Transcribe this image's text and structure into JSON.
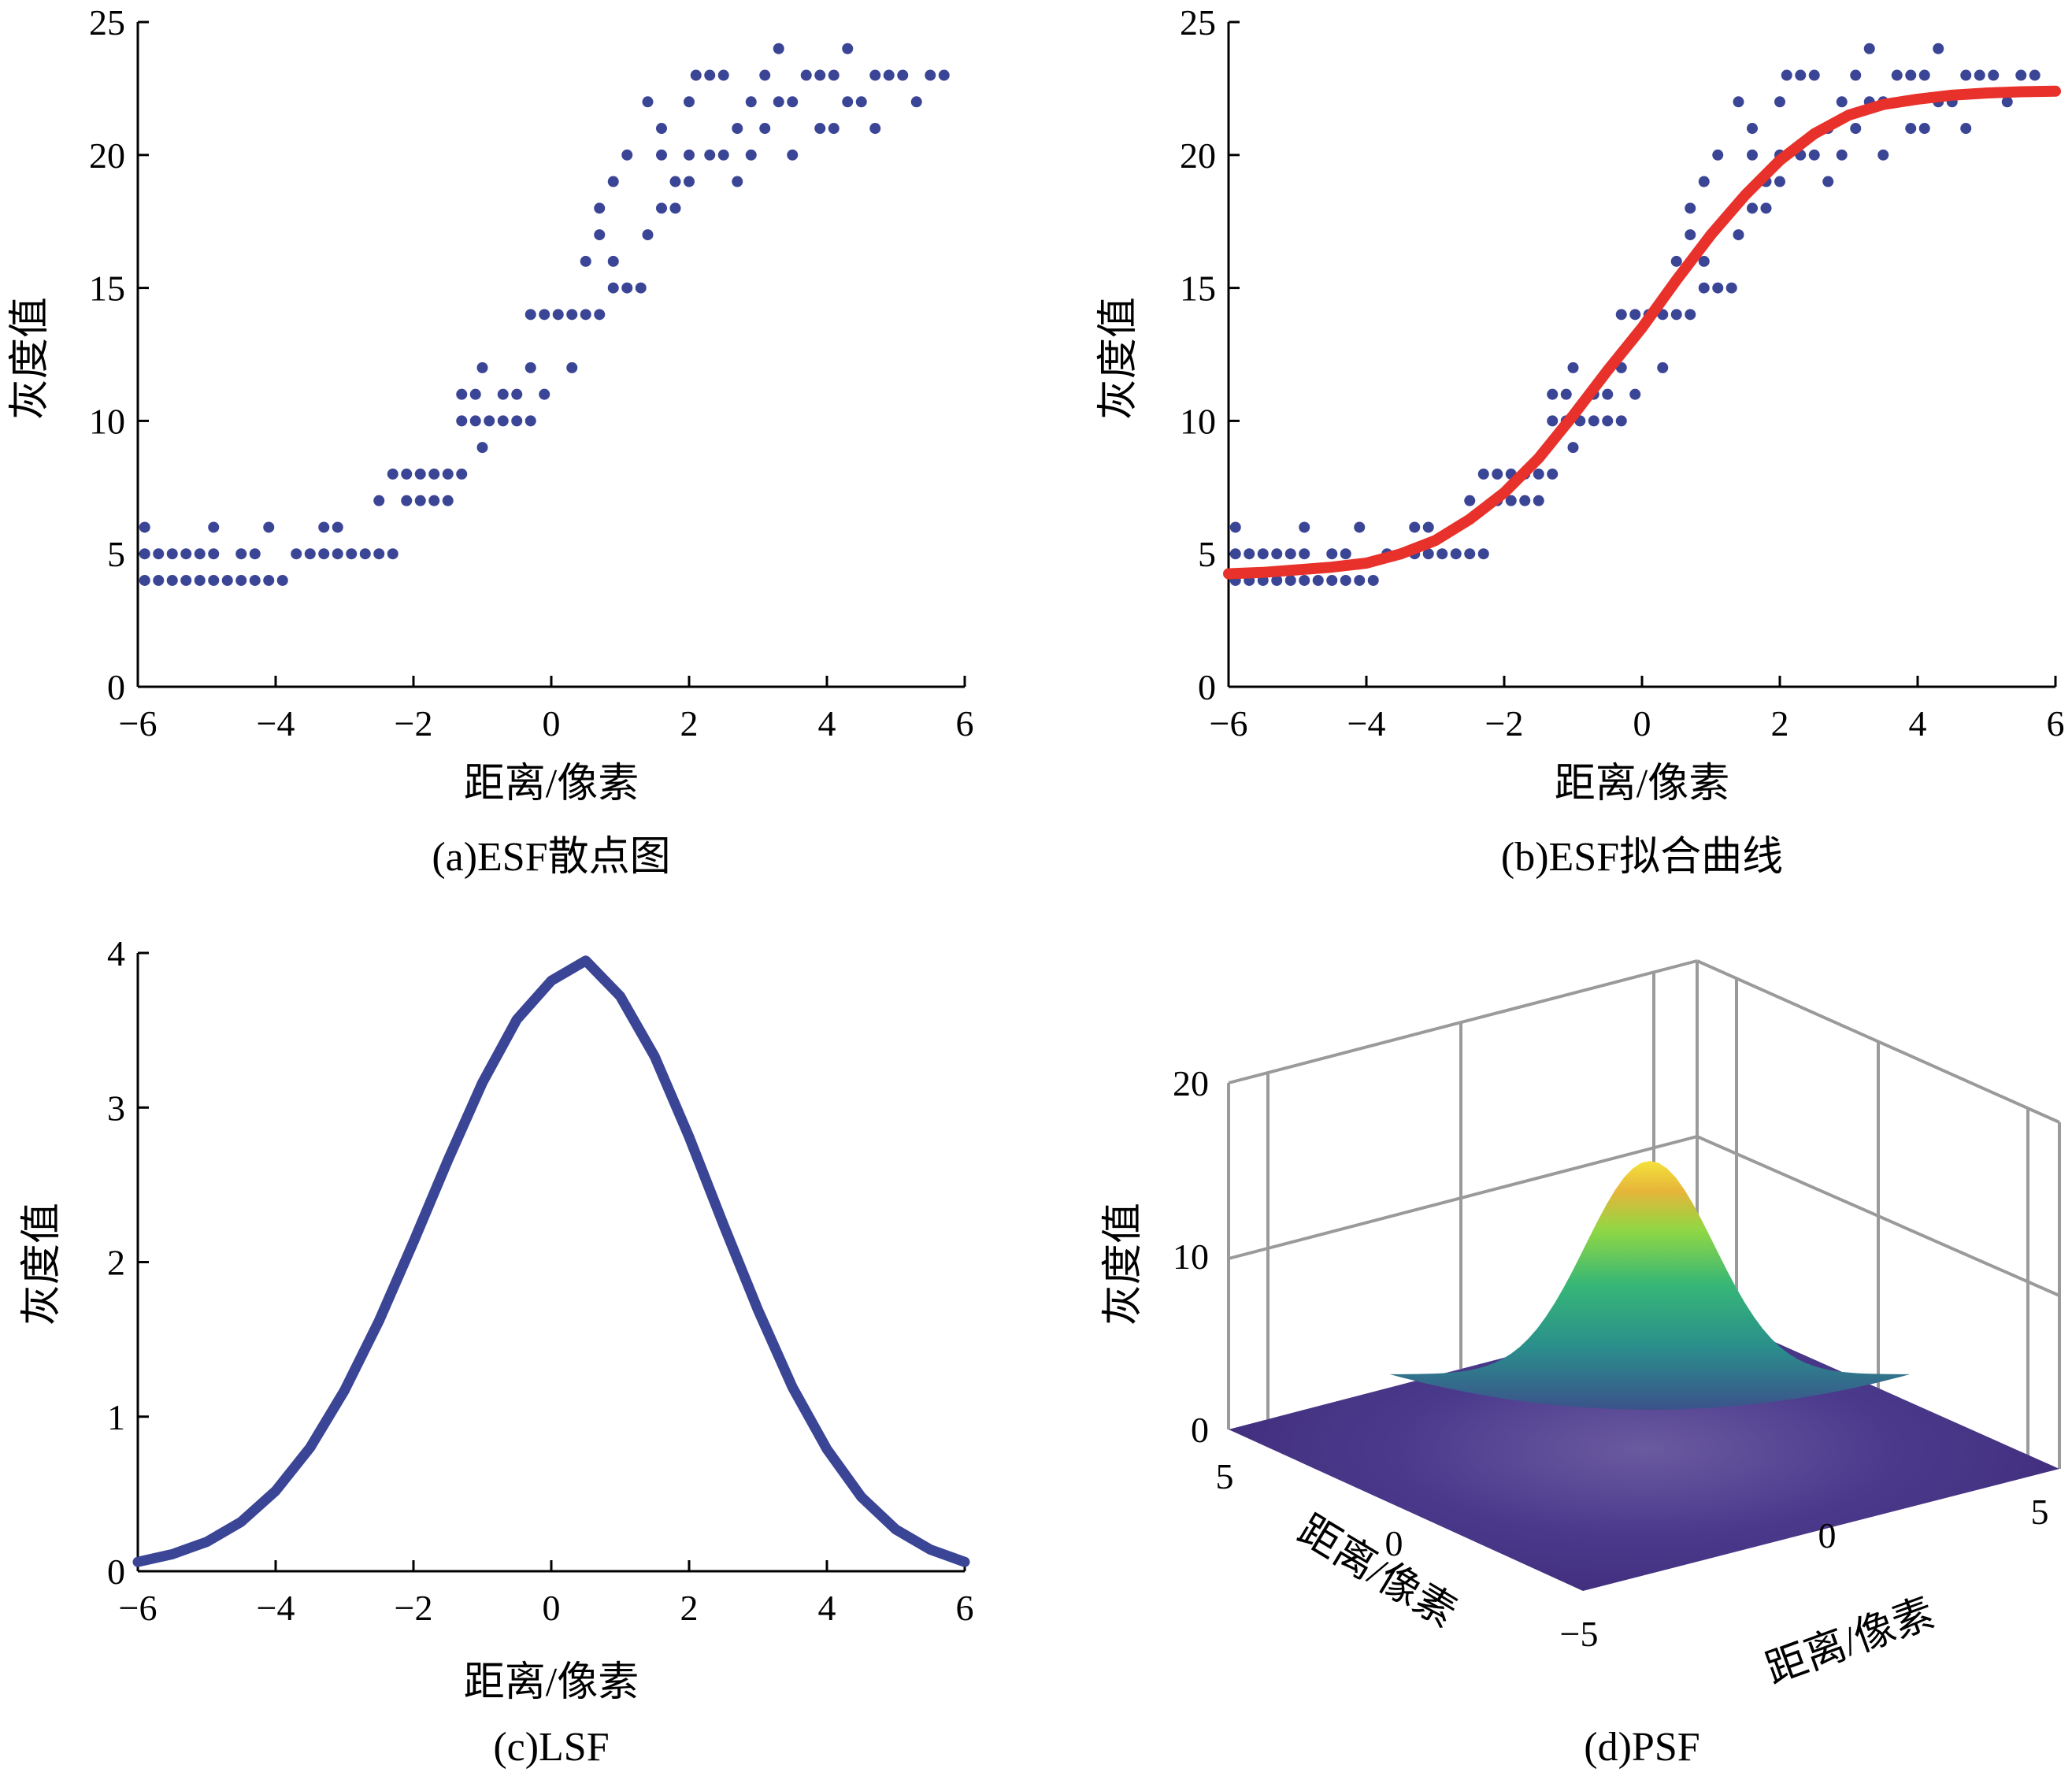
{
  "panels": {
    "a": {
      "caption": "(a)ESF散点图",
      "xlabel": "距离/像素",
      "ylabel": "灰度值"
    },
    "b": {
      "caption": "(b)ESF拟合曲线",
      "xlabel": "距离/像素",
      "ylabel": "灰度值"
    },
    "c": {
      "caption": "(c)LSF",
      "xlabel": "距离/像素",
      "ylabel": "灰度值"
    },
    "d": {
      "caption": "(d)PSF",
      "xlabel_left": "距离/像素",
      "xlabel_right": "距离/像素",
      "ylabel": "灰度值"
    }
  },
  "chart_data": [
    {
      "type": "scatter",
      "xlim": [
        -6,
        6
      ],
      "ylim": [
        0,
        25
      ],
      "xticks": [
        -6,
        -4,
        -2,
        0,
        2,
        4,
        6
      ],
      "xtick_labels": [
        "−6",
        "−4",
        "−2",
        "0",
        "2",
        "4",
        "6"
      ],
      "yticks": [
        0,
        5,
        10,
        15,
        20,
        25
      ],
      "marker_color": "#3b4596",
      "points": [
        [
          -5.9,
          4
        ],
        [
          -5.9,
          5
        ],
        [
          -5.9,
          6
        ],
        [
          -5.7,
          4
        ],
        [
          -5.7,
          5
        ],
        [
          -5.5,
          4
        ],
        [
          -5.5,
          5
        ],
        [
          -5.3,
          4
        ],
        [
          -5.3,
          5
        ],
        [
          -5.1,
          4
        ],
        [
          -5.1,
          5
        ],
        [
          -4.9,
          4
        ],
        [
          -4.9,
          5
        ],
        [
          -4.9,
          6
        ],
        [
          -4.7,
          4
        ],
        [
          -4.5,
          4
        ],
        [
          -4.5,
          5
        ],
        [
          -4.3,
          4
        ],
        [
          -4.3,
          5
        ],
        [
          -4.1,
          4
        ],
        [
          -4.1,
          6
        ],
        [
          -3.9,
          4
        ],
        [
          -3.7,
          5
        ],
        [
          -3.5,
          5
        ],
        [
          -3.3,
          5
        ],
        [
          -3.3,
          6
        ],
        [
          -3.1,
          5
        ],
        [
          -3.1,
          6
        ],
        [
          -2.9,
          5
        ],
        [
          -2.7,
          5
        ],
        [
          -2.5,
          5
        ],
        [
          -2.5,
          7
        ],
        [
          -2.3,
          5
        ],
        [
          -2.3,
          8
        ],
        [
          -2.1,
          7
        ],
        [
          -2.1,
          8
        ],
        [
          -1.9,
          7
        ],
        [
          -1.9,
          8
        ],
        [
          -1.7,
          7
        ],
        [
          -1.7,
          8
        ],
        [
          -1.5,
          7
        ],
        [
          -1.5,
          8
        ],
        [
          -1.3,
          8
        ],
        [
          -1.3,
          10
        ],
        [
          -1.3,
          11
        ],
        [
          -1.1,
          10
        ],
        [
          -1.1,
          11
        ],
        [
          -1.0,
          9
        ],
        [
          -1.0,
          12
        ],
        [
          -0.9,
          10
        ],
        [
          -0.7,
          10
        ],
        [
          -0.7,
          11
        ],
        [
          -0.5,
          10
        ],
        [
          -0.5,
          11
        ],
        [
          -0.3,
          10
        ],
        [
          -0.3,
          12
        ],
        [
          -0.3,
          14
        ],
        [
          -0.1,
          11
        ],
        [
          -0.1,
          14
        ],
        [
          0.1,
          14
        ],
        [
          0.3,
          12
        ],
        [
          0.3,
          14
        ],
        [
          0.5,
          14
        ],
        [
          0.5,
          16
        ],
        [
          0.7,
          14
        ],
        [
          0.7,
          17
        ],
        [
          0.7,
          18
        ],
        [
          0.9,
          15
        ],
        [
          0.9,
          16
        ],
        [
          0.9,
          19
        ],
        [
          1.1,
          15
        ],
        [
          1.1,
          20
        ],
        [
          1.3,
          15
        ],
        [
          1.4,
          17
        ],
        [
          1.4,
          22
        ],
        [
          1.6,
          18
        ],
        [
          1.6,
          20
        ],
        [
          1.6,
          21
        ],
        [
          1.8,
          18
        ],
        [
          1.8,
          19
        ],
        [
          2.0,
          19
        ],
        [
          2.0,
          20
        ],
        [
          2.0,
          22
        ],
        [
          2.1,
          23
        ],
        [
          2.3,
          20
        ],
        [
          2.3,
          23
        ],
        [
          2.5,
          20
        ],
        [
          2.5,
          23
        ],
        [
          2.7,
          19
        ],
        [
          2.7,
          21
        ],
        [
          2.9,
          20
        ],
        [
          2.9,
          22
        ],
        [
          3.1,
          21
        ],
        [
          3.1,
          23
        ],
        [
          3.3,
          22
        ],
        [
          3.3,
          24
        ],
        [
          3.5,
          22
        ],
        [
          3.5,
          20
        ],
        [
          3.7,
          23
        ],
        [
          3.9,
          21
        ],
        [
          3.9,
          23
        ],
        [
          4.1,
          21
        ],
        [
          4.1,
          23
        ],
        [
          4.3,
          24
        ],
        [
          4.3,
          22
        ],
        [
          4.5,
          22
        ],
        [
          4.7,
          21
        ],
        [
          4.7,
          23
        ],
        [
          4.9,
          23
        ],
        [
          5.1,
          23
        ],
        [
          5.3,
          22
        ],
        [
          5.5,
          23
        ],
        [
          5.7,
          23
        ]
      ]
    },
    {
      "type": "scatter",
      "xlim": [
        -6,
        6
      ],
      "ylim": [
        0,
        25
      ],
      "xticks": [
        -6,
        -4,
        -2,
        0,
        2,
        4,
        6
      ],
      "xtick_labels": [
        "−6",
        "−4",
        "−2",
        "0",
        "2",
        "4",
        "6"
      ],
      "yticks": [
        0,
        5,
        10,
        15,
        20,
        25
      ],
      "marker_color": "#3b4596",
      "fit_color": "#e8312a",
      "points": [
        [
          -5.9,
          4
        ],
        [
          -5.9,
          5
        ],
        [
          -5.9,
          6
        ],
        [
          -5.7,
          4
        ],
        [
          -5.7,
          5
        ],
        [
          -5.5,
          4
        ],
        [
          -5.5,
          5
        ],
        [
          -5.3,
          4
        ],
        [
          -5.3,
          5
        ],
        [
          -5.1,
          4
        ],
        [
          -5.1,
          5
        ],
        [
          -4.9,
          4
        ],
        [
          -4.9,
          5
        ],
        [
          -4.9,
          6
        ],
        [
          -4.7,
          4
        ],
        [
          -4.5,
          4
        ],
        [
          -4.5,
          5
        ],
        [
          -4.3,
          4
        ],
        [
          -4.3,
          5
        ],
        [
          -4.1,
          4
        ],
        [
          -4.1,
          6
        ],
        [
          -3.9,
          4
        ],
        [
          -3.7,
          5
        ],
        [
          -3.5,
          5
        ],
        [
          -3.3,
          5
        ],
        [
          -3.3,
          6
        ],
        [
          -3.1,
          5
        ],
        [
          -3.1,
          6
        ],
        [
          -2.9,
          5
        ],
        [
          -2.7,
          5
        ],
        [
          -2.5,
          5
        ],
        [
          -2.5,
          7
        ],
        [
          -2.3,
          5
        ],
        [
          -2.3,
          8
        ],
        [
          -2.1,
          7
        ],
        [
          -2.1,
          8
        ],
        [
          -1.9,
          7
        ],
        [
          -1.9,
          8
        ],
        [
          -1.7,
          7
        ],
        [
          -1.7,
          8
        ],
        [
          -1.5,
          7
        ],
        [
          -1.5,
          8
        ],
        [
          -1.3,
          8
        ],
        [
          -1.3,
          10
        ],
        [
          -1.3,
          11
        ],
        [
          -1.1,
          10
        ],
        [
          -1.1,
          11
        ],
        [
          -1.0,
          9
        ],
        [
          -1.0,
          12
        ],
        [
          -0.9,
          10
        ],
        [
          -0.7,
          10
        ],
        [
          -0.7,
          11
        ],
        [
          -0.5,
          10
        ],
        [
          -0.5,
          11
        ],
        [
          -0.3,
          10
        ],
        [
          -0.3,
          12
        ],
        [
          -0.3,
          14
        ],
        [
          -0.1,
          11
        ],
        [
          -0.1,
          14
        ],
        [
          0.1,
          14
        ],
        [
          0.3,
          12
        ],
        [
          0.3,
          14
        ],
        [
          0.5,
          14
        ],
        [
          0.5,
          16
        ],
        [
          0.7,
          14
        ],
        [
          0.7,
          17
        ],
        [
          0.7,
          18
        ],
        [
          0.9,
          15
        ],
        [
          0.9,
          16
        ],
        [
          0.9,
          19
        ],
        [
          1.1,
          15
        ],
        [
          1.1,
          20
        ],
        [
          1.3,
          15
        ],
        [
          1.4,
          17
        ],
        [
          1.4,
          22
        ],
        [
          1.6,
          18
        ],
        [
          1.6,
          20
        ],
        [
          1.6,
          21
        ],
        [
          1.8,
          18
        ],
        [
          1.8,
          19
        ],
        [
          2.0,
          19
        ],
        [
          2.0,
          20
        ],
        [
          2.0,
          22
        ],
        [
          2.1,
          23
        ],
        [
          2.3,
          20
        ],
        [
          2.3,
          23
        ],
        [
          2.5,
          20
        ],
        [
          2.5,
          23
        ],
        [
          2.7,
          19
        ],
        [
          2.7,
          21
        ],
        [
          2.9,
          20
        ],
        [
          2.9,
          22
        ],
        [
          3.1,
          21
        ],
        [
          3.1,
          23
        ],
        [
          3.3,
          22
        ],
        [
          3.3,
          24
        ],
        [
          3.5,
          22
        ],
        [
          3.5,
          20
        ],
        [
          3.7,
          23
        ],
        [
          3.9,
          21
        ],
        [
          3.9,
          23
        ],
        [
          4.1,
          21
        ],
        [
          4.1,
          23
        ],
        [
          4.3,
          24
        ],
        [
          4.3,
          22
        ],
        [
          4.5,
          22
        ],
        [
          4.7,
          21
        ],
        [
          4.7,
          23
        ],
        [
          4.9,
          23
        ],
        [
          5.1,
          23
        ],
        [
          5.3,
          22
        ],
        [
          5.5,
          23
        ],
        [
          5.7,
          23
        ]
      ],
      "fit_curve": [
        [
          -6,
          4.25
        ],
        [
          -5.5,
          4.3
        ],
        [
          -5,
          4.4
        ],
        [
          -4.5,
          4.5
        ],
        [
          -4,
          4.65
        ],
        [
          -3.5,
          5.0
        ],
        [
          -3,
          5.5
        ],
        [
          -2.5,
          6.3
        ],
        [
          -2,
          7.3
        ],
        [
          -1.5,
          8.6
        ],
        [
          -1,
          10.2
        ],
        [
          -0.5,
          11.9
        ],
        [
          0,
          13.5
        ],
        [
          0.5,
          15.3
        ],
        [
          1,
          17.0
        ],
        [
          1.5,
          18.5
        ],
        [
          2,
          19.8
        ],
        [
          2.5,
          20.8
        ],
        [
          3,
          21.5
        ],
        [
          3.5,
          21.9
        ],
        [
          4,
          22.1
        ],
        [
          4.5,
          22.25
        ],
        [
          5,
          22.33
        ],
        [
          5.5,
          22.38
        ],
        [
          6,
          22.4
        ]
      ]
    },
    {
      "type": "line",
      "xlim": [
        -6,
        6
      ],
      "ylim": [
        0,
        4
      ],
      "xticks": [
        -6,
        -4,
        -2,
        0,
        2,
        4,
        6
      ],
      "xtick_labels": [
        "−6",
        "−4",
        "−2",
        "0",
        "2",
        "4",
        "6"
      ],
      "yticks": [
        0,
        1,
        2,
        3,
        4
      ],
      "line_color": "#3b4596",
      "series": [
        {
          "x": [
            -6,
            -5.5,
            -5,
            -4.5,
            -4,
            -3.5,
            -3,
            -2.5,
            -2,
            -1.5,
            -1,
            -0.5,
            0,
            0.5,
            1,
            1.5,
            2,
            2.5,
            3,
            3.5,
            4,
            4.5,
            5,
            5.5,
            6
          ],
          "y": [
            0.06,
            0.11,
            0.19,
            0.32,
            0.52,
            0.8,
            1.17,
            1.62,
            2.13,
            2.66,
            3.16,
            3.57,
            3.82,
            3.95,
            3.72,
            3.33,
            2.81,
            2.24,
            1.69,
            1.19,
            0.79,
            0.48,
            0.27,
            0.14,
            0.06
          ]
        }
      ]
    },
    {
      "type": "surface",
      "zlim": [
        0,
        20
      ],
      "zticks": [
        0,
        10,
        20
      ],
      "x_ticks": [
        -5,
        0,
        5
      ],
      "x_tick_labels": [
        "−5",
        "0",
        "5"
      ],
      "y_ticks": [
        5,
        0
      ],
      "y_tick_labels": [
        "5",
        "0"
      ],
      "peak_value": 15.5,
      "colormap": [
        "#46337e",
        "#365c8d",
        "#277f8e",
        "#1fa187",
        "#4ac16d",
        "#a0da39",
        "#fde725"
      ]
    }
  ]
}
